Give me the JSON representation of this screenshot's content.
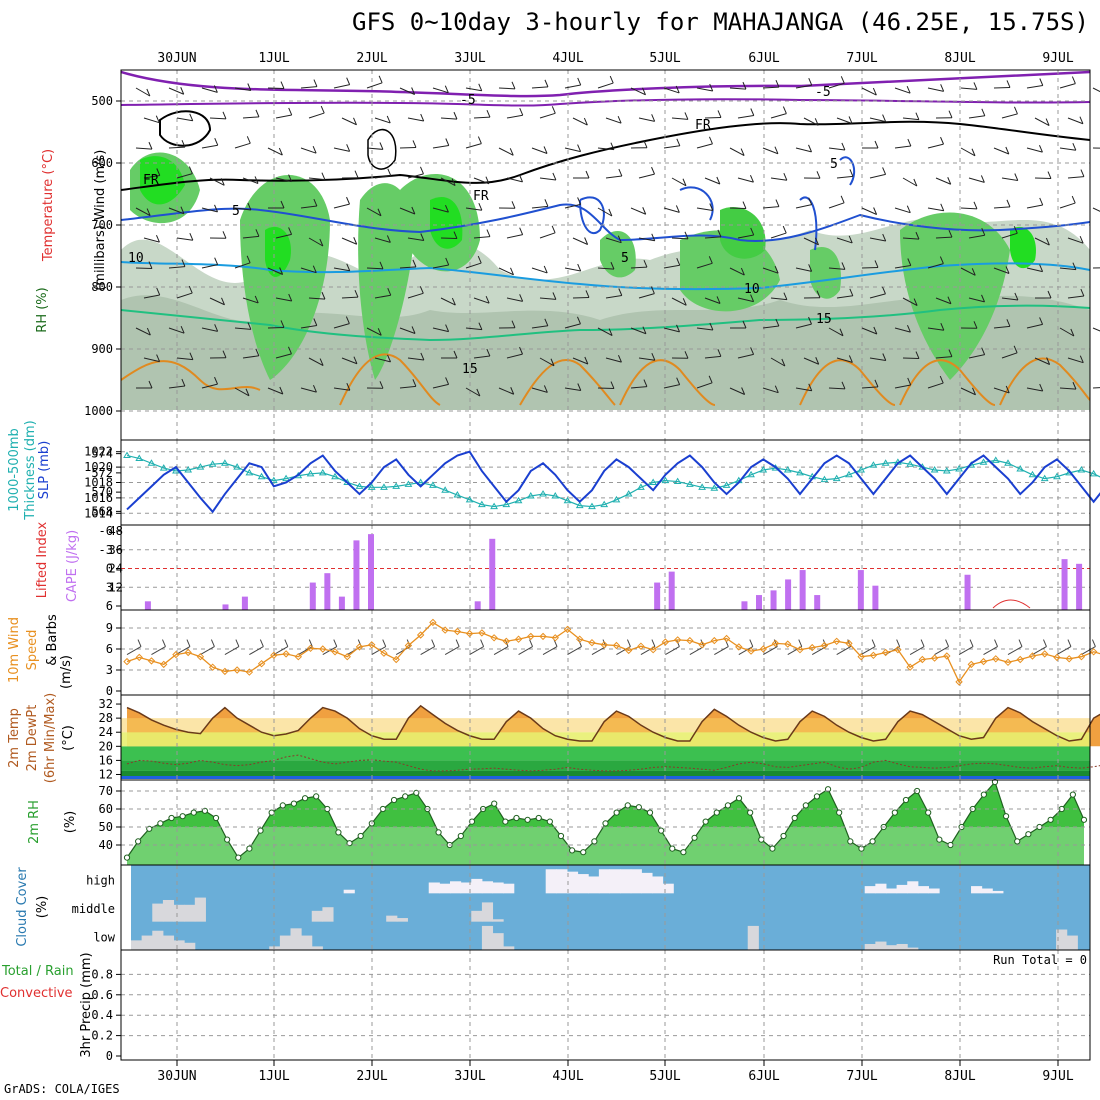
{
  "title": "GFS 0~10day 3-hourly for MAHAJANGA (46.25E, 15.75S)",
  "credit": "GrADS: COLA/IGES",
  "days": [
    "30JUN",
    "1JUL",
    "2JUL",
    "3JUL",
    "4JUL",
    "5JUL",
    "6JUL",
    "7JUL",
    "8JUL",
    "9JUL"
  ],
  "panels": {
    "upper_air": {
      "y_ticks": [
        "500",
        "600",
        "700",
        "800",
        "900",
        "1000"
      ],
      "side_labels": [
        "Wind (m/s)",
        "Temperature (°C)",
        "RH (%)",
        "(millibars)"
      ],
      "contour_labels": [
        "-5",
        "-5",
        "FR",
        "FR",
        "FR",
        "5",
        "5",
        "5",
        "10",
        "10",
        "15",
        "15"
      ]
    },
    "slp": {
      "left_ticks": [
        "574",
        "572",
        "570",
        "568"
      ],
      "right_ticks": [
        "1022",
        "1020",
        "1018",
        "1016",
        "1014"
      ],
      "side_labels": [
        "1000-500mb",
        "Thickness (dm)",
        "SLP (mb)"
      ]
    },
    "cape": {
      "left_ticks": [
        "-6",
        "-3",
        "0",
        "3",
        "6"
      ],
      "right_ticks": [
        "48",
        "36",
        "24",
        "12"
      ],
      "side_labels": [
        "Lifted Index",
        "CAPE (J/kg)"
      ]
    },
    "wind": {
      "ticks": [
        "9",
        "6",
        "3",
        "0"
      ],
      "side_labels": [
        "10m Wind",
        "Speed",
        "(m/s)",
        "& Barbs"
      ]
    },
    "temp": {
      "ticks": [
        "32",
        "28",
        "24",
        "20",
        "16",
        "12"
      ],
      "side_labels": [
        "2m Temp",
        "2m DewPt",
        "(6hr Min/Max)",
        "(°C)"
      ]
    },
    "rh": {
      "ticks": [
        "70",
        "60",
        "50",
        "40"
      ],
      "side_labels": [
        "2m RH",
        "(%)"
      ]
    },
    "cloud": {
      "levels": [
        "high",
        "middle",
        "low"
      ],
      "side_labels": [
        "Cloud Cover",
        "(%)"
      ]
    },
    "precip": {
      "ticks": [
        "0.8",
        "0.6",
        "0.4",
        "0.2",
        "0"
      ],
      "run_total": "Run Total = 0",
      "side_labels": [
        "Total / Rain",
        "Convective",
        "3hr Precip (mm)"
      ]
    }
  },
  "colors": {
    "slp": "#1a3fd0",
    "thickness": "#20b0b0",
    "cape": "#c070f0",
    "wind_speed": "#e89020",
    "temp_fill": "#f0a040",
    "rh_fill": "#40c040",
    "cloud_bg": "#6aaed8",
    "precip_axis": "#000000"
  },
  "chart_data": [
    {
      "type": "line",
      "panel": "slp",
      "series": [
        {
          "name": "SLP (mb)",
          "values": [
            1014.5,
            1016,
            1017.5,
            1019,
            1020,
            1018,
            1016,
            1014.2,
            1016.5,
            1018.5,
            1020.5,
            1020,
            1017.5,
            1018,
            1019,
            1020.5,
            1021.5,
            1019.5,
            1018,
            1016.5,
            1018,
            1020,
            1021,
            1019,
            1017.5,
            1019,
            1020.5,
            1021.5,
            1022,
            1019.5,
            1017.5,
            1015.5,
            1017,
            1019.5,
            1020.5,
            1019,
            1017,
            1015.5,
            1017,
            1019.5,
            1021,
            1020,
            1018.5,
            1017,
            1019,
            1020.5,
            1021.5,
            1020,
            1018,
            1016.5,
            1018,
            1020,
            1021,
            1020,
            1018.5,
            1016.5,
            1018.5,
            1020.5,
            1021.5,
            1020.5,
            1018.5,
            1016.5,
            1018.5,
            1020.5,
            1021.5,
            1020,
            1018.5,
            1016.5,
            1018.5,
            1020.5,
            1021.5,
            1020,
            1018.5,
            1016.5,
            1018,
            1020,
            1021,
            1019.5,
            1017.5,
            1015.5,
            1017.5,
            1019.5,
            1020,
            1019
          ]
        },
        {
          "name": "1000-500mb Thickness (dm)",
          "values": [
            573.8,
            573.5,
            573,
            572.5,
            572.2,
            572.3,
            572.6,
            572.9,
            573,
            572.6,
            572,
            571.6,
            571.2,
            571.4,
            571.7,
            571.9,
            572,
            571.6,
            571,
            570.6,
            570.5,
            570.5,
            570.6,
            570.8,
            571,
            570.7,
            570.2,
            569.7,
            569.2,
            568.7,
            568.5,
            568.7,
            569.1,
            569.6,
            569.8,
            569.6,
            569.1,
            568.6,
            568.5,
            568.7,
            569.2,
            569.8,
            570.5,
            571,
            571.2,
            571.1,
            570.8,
            570.5,
            570.4,
            570.7,
            571.2,
            571.8,
            572.3,
            572.5,
            572.3,
            572,
            571.6,
            571.3,
            571.4,
            571.8,
            572.3,
            572.8,
            573,
            573.1,
            572.9,
            572.6,
            572.3,
            572.2,
            572.4,
            572.8,
            573.1,
            573.3,
            573,
            572.4,
            571.8,
            571.4,
            571.6,
            572,
            572.3,
            571.9,
            571.3,
            570.8,
            570.6,
            571
          ]
        }
      ],
      "ylim_left": [
        567,
        575
      ],
      "ylim_right": [
        1013,
        1023
      ]
    },
    {
      "type": "bar",
      "panel": "cape",
      "series": [
        {
          "name": "CAPE (J/kg)",
          "points": [
            [
              0.2,
              3
            ],
            [
              1.0,
              1
            ],
            [
              1.2,
              6
            ],
            [
              1.9,
              15
            ],
            [
              2.05,
              21
            ],
            [
              2.2,
              6
            ],
            [
              2.35,
              42
            ],
            [
              2.5,
              46
            ],
            [
              3.6,
              3
            ],
            [
              3.75,
              43
            ],
            [
              5.45,
              15
            ],
            [
              5.6,
              22
            ],
            [
              6.35,
              3
            ],
            [
              6.5,
              7
            ],
            [
              6.65,
              10
            ],
            [
              6.8,
              17
            ],
            [
              6.95,
              23
            ],
            [
              7.1,
              7
            ],
            [
              7.55,
              23
            ],
            [
              7.7,
              13
            ],
            [
              8.65,
              20
            ],
            [
              9.65,
              30
            ],
            [
              9.8,
              27
            ]
          ]
        }
      ],
      "lifted_index_zero": 0,
      "ylim_right": [
        0,
        48
      ]
    },
    {
      "type": "line",
      "panel": "wind",
      "series": [
        {
          "name": "10m Wind Speed (m/s)",
          "values": [
            4.2,
            4.8,
            4.3,
            3.8,
            5.2,
            5.5,
            4.9,
            3.4,
            2.8,
            3.0,
            2.7,
            3.9,
            5.1,
            5.3,
            4.9,
            6.1,
            6.0,
            5.6,
            4.9,
            6.3,
            6.6,
            5.4,
            4.5,
            6.5,
            8.0,
            9.8,
            8.7,
            8.5,
            8.2,
            8.3,
            7.6,
            7.1,
            7.4,
            7.8,
            7.8,
            7.6,
            8.8,
            7.4,
            6.9,
            6.6,
            6.5,
            5.8,
            6.4,
            5.9,
            7.0,
            7.3,
            7.2,
            6.6,
            7.2,
            7.5,
            6.3,
            5.7,
            6.0,
            6.8,
            6.7,
            5.9,
            6.2,
            6.5,
            7.1,
            6.8,
            4.9,
            5.1,
            5.5,
            5.9,
            3.4,
            4.5,
            4.7,
            5.0,
            1.3,
            3.8,
            4.2,
            4.6,
            4.1,
            4.5,
            5.0,
            5.3,
            4.8,
            4.6,
            4.9,
            5.6,
            5.1,
            4.8,
            5.4,
            4.7
          ]
        }
      ],
      "ylim": [
        0,
        11
      ]
    },
    {
      "type": "area",
      "panel": "temp",
      "series": [
        {
          "name": "2m Temp (°C)",
          "values": [
            31,
            29.5,
            27.5,
            26,
            24.8,
            24,
            23.6,
            28,
            31,
            28,
            26,
            24,
            23,
            23.5,
            24.5,
            28,
            31,
            30,
            28,
            25,
            23,
            22,
            22,
            28,
            31.5,
            29,
            26.5,
            24.5,
            23,
            22,
            22,
            27,
            30,
            28,
            25,
            23,
            22,
            21.5,
            21.5,
            27,
            30,
            28.5,
            26,
            24,
            22.5,
            21.5,
            21.5,
            27,
            30.5,
            28.5,
            26,
            24,
            22.5,
            21.5,
            22,
            27,
            30,
            28.5,
            26,
            24,
            22.5,
            21.5,
            22,
            27,
            30,
            29,
            27,
            25,
            23,
            22,
            22.5,
            28,
            31,
            29.5,
            27,
            25,
            23,
            21.5,
            22,
            28,
            30,
            28,
            25,
            23
          ]
        },
        {
          "name": "2m DewPt (°C)",
          "values": [
            15,
            16,
            15.8,
            15.2,
            14.8,
            15.2,
            16,
            15.5,
            14.8,
            14.5,
            14.8,
            15.5,
            16,
            17,
            17.5,
            16.5,
            15.5,
            15,
            15.5,
            16,
            16.2,
            15.8,
            15.5,
            14.5,
            13.5,
            13,
            13,
            13.2,
            13.5,
            13.6,
            13.8,
            13.5,
            13.2,
            13,
            13.2,
            13.5,
            14,
            13.5,
            13.2,
            13,
            13,
            13.2,
            13.5,
            14,
            14.2,
            14,
            13.8,
            13.5,
            13.2,
            14,
            15,
            15.5,
            15,
            14.2,
            14,
            14.5,
            15,
            15.5,
            14.2,
            13.5,
            14,
            15.5,
            16,
            15,
            14.2,
            14,
            13.8,
            14,
            14.5,
            15,
            15.2,
            15,
            14.5,
            14,
            13.8,
            14.2,
            14.5,
            14,
            13.8,
            14.2,
            14.8,
            15,
            14.2,
            14
          ]
        }
      ],
      "ylim": [
        11,
        34
      ]
    },
    {
      "type": "area",
      "panel": "rh",
      "series": [
        {
          "name": "2m RH (%)",
          "values": [
            33,
            42,
            49,
            52,
            55,
            56,
            58,
            59,
            55,
            43,
            33,
            38,
            48,
            58,
            62,
            63,
            66,
            67,
            60,
            47,
            41,
            45,
            52,
            60,
            65,
            67,
            69,
            60,
            47,
            40,
            45,
            53,
            60,
            63,
            53,
            55,
            54,
            55,
            53,
            45,
            37,
            36,
            42,
            52,
            58,
            62,
            61,
            58,
            48,
            38,
            36,
            44,
            53,
            58,
            62,
            66,
            58,
            43,
            38,
            45,
            55,
            62,
            67,
            71,
            58,
            42,
            38,
            42,
            50,
            58,
            65,
            70,
            58,
            43,
            40,
            50,
            60,
            68,
            75,
            56,
            42,
            46,
            50,
            54,
            60,
            68,
            54
          ]
        }
      ],
      "ylim": [
        30,
        75
      ]
    },
    {
      "type": "bar",
      "panel": "cloud",
      "series": [
        {
          "name": "high",
          "values": [
            0,
            0,
            0,
            0,
            0,
            0,
            0,
            0,
            0,
            0,
            0,
            0,
            0,
            0,
            0,
            0,
            0,
            0,
            0,
            0,
            15,
            0,
            0,
            0,
            0,
            0,
            0,
            0,
            45,
            40,
            50,
            45,
            60,
            50,
            45,
            40,
            0,
            0,
            0,
            100,
            100,
            90,
            80,
            70,
            100,
            100,
            100,
            100,
            85,
            70,
            40,
            0,
            0,
            0,
            0,
            0,
            0,
            0,
            0,
            0,
            0,
            0,
            0,
            0,
            0,
            0,
            0,
            0,
            0,
            30,
            40,
            20,
            35,
            50,
            30,
            20,
            0,
            0,
            0,
            30,
            20,
            10,
            0,
            0,
            0,
            0,
            0,
            0,
            0,
            0
          ]
        },
        {
          "name": "middle",
          "values": [
            0,
            0,
            75,
            90,
            70,
            70,
            100,
            0,
            0,
            0,
            0,
            0,
            0,
            0,
            0,
            0,
            0,
            45,
            60,
            0,
            0,
            0,
            0,
            0,
            25,
            15,
            0,
            0,
            0,
            0,
            0,
            0,
            45,
            80,
            10,
            0,
            0,
            0,
            0,
            0,
            0,
            0,
            0,
            0,
            0,
            0,
            0,
            0,
            0,
            0,
            0,
            0,
            0,
            0,
            0,
            0,
            0,
            0,
            0,
            0,
            0,
            0,
            0,
            0,
            0,
            0,
            0,
            0,
            0,
            0,
            0,
            0,
            0,
            0,
            0,
            0,
            0,
            0,
            0,
            0,
            0,
            0,
            0,
            0,
            0,
            0,
            0,
            0,
            0,
            0
          ]
        },
        {
          "name": "low",
          "values": [
            40,
            60,
            80,
            60,
            40,
            30,
            0,
            0,
            0,
            0,
            0,
            0,
            0,
            15,
            60,
            90,
            60,
            15,
            0,
            0,
            0,
            0,
            0,
            0,
            0,
            0,
            0,
            0,
            0,
            0,
            0,
            0,
            0,
            100,
            70,
            15,
            0,
            0,
            0,
            0,
            0,
            0,
            0,
            0,
            0,
            0,
            0,
            0,
            0,
            0,
            0,
            0,
            0,
            0,
            0,
            0,
            0,
            0,
            100,
            0,
            0,
            0,
            0,
            0,
            0,
            0,
            0,
            0,
            0,
            25,
            35,
            20,
            25,
            10,
            0,
            0,
            0,
            0,
            0,
            0,
            0,
            0,
            0,
            0,
            0,
            0,
            0,
            85,
            60,
            0
          ]
        }
      ],
      "ylim": [
        0,
        100
      ]
    },
    {
      "type": "bar",
      "panel": "precip",
      "series": [
        {
          "name": "Total / Rain",
          "values": []
        },
        {
          "name": "Convective",
          "values": []
        }
      ],
      "ylim": [
        0,
        1
      ]
    }
  ]
}
